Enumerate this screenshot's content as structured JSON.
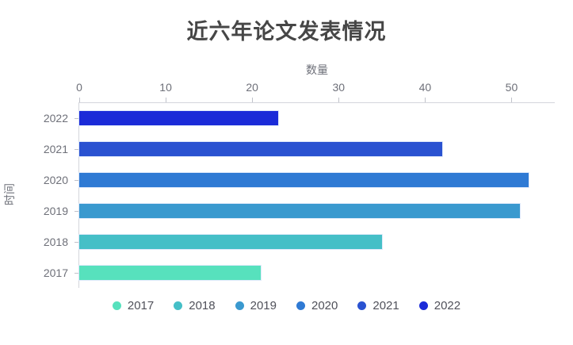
{
  "chart_data": {
    "type": "bar",
    "orientation": "horizontal",
    "title": "近六年论文发表情况",
    "xlabel": "数量",
    "ylabel": "时间",
    "categories": [
      "2017",
      "2018",
      "2019",
      "2020",
      "2021",
      "2022"
    ],
    "values": [
      21,
      35,
      51,
      52,
      42,
      23
    ],
    "bar_colors": [
      "#57E1BD",
      "#45BFC7",
      "#3A99CF",
      "#2F7AD4",
      "#2A52D1",
      "#1B2BD8"
    ],
    "y_order_top_to_bottom": [
      "2022",
      "2021",
      "2020",
      "2019",
      "2018",
      "2017"
    ],
    "xlim": [
      0,
      55
    ],
    "xticks": [
      0,
      10,
      20,
      30,
      40,
      50
    ],
    "grid": false,
    "legend_position": "bottom",
    "legend_items": [
      {
        "label": "2017",
        "color": "#57E1BD"
      },
      {
        "label": "2018",
        "color": "#45BFC7"
      },
      {
        "label": "2019",
        "color": "#3A99CF"
      },
      {
        "label": "2020",
        "color": "#2F7AD4"
      },
      {
        "label": "2021",
        "color": "#2A52D1"
      },
      {
        "label": "2022",
        "color": "#1B2BD8"
      }
    ],
    "text_colors": {
      "title": "#464646",
      "axis_name": "#6E7079",
      "tick_label": "#6E7079",
      "legend_label": "#50515a"
    },
    "axis_line_color": "#d4d6dc"
  }
}
